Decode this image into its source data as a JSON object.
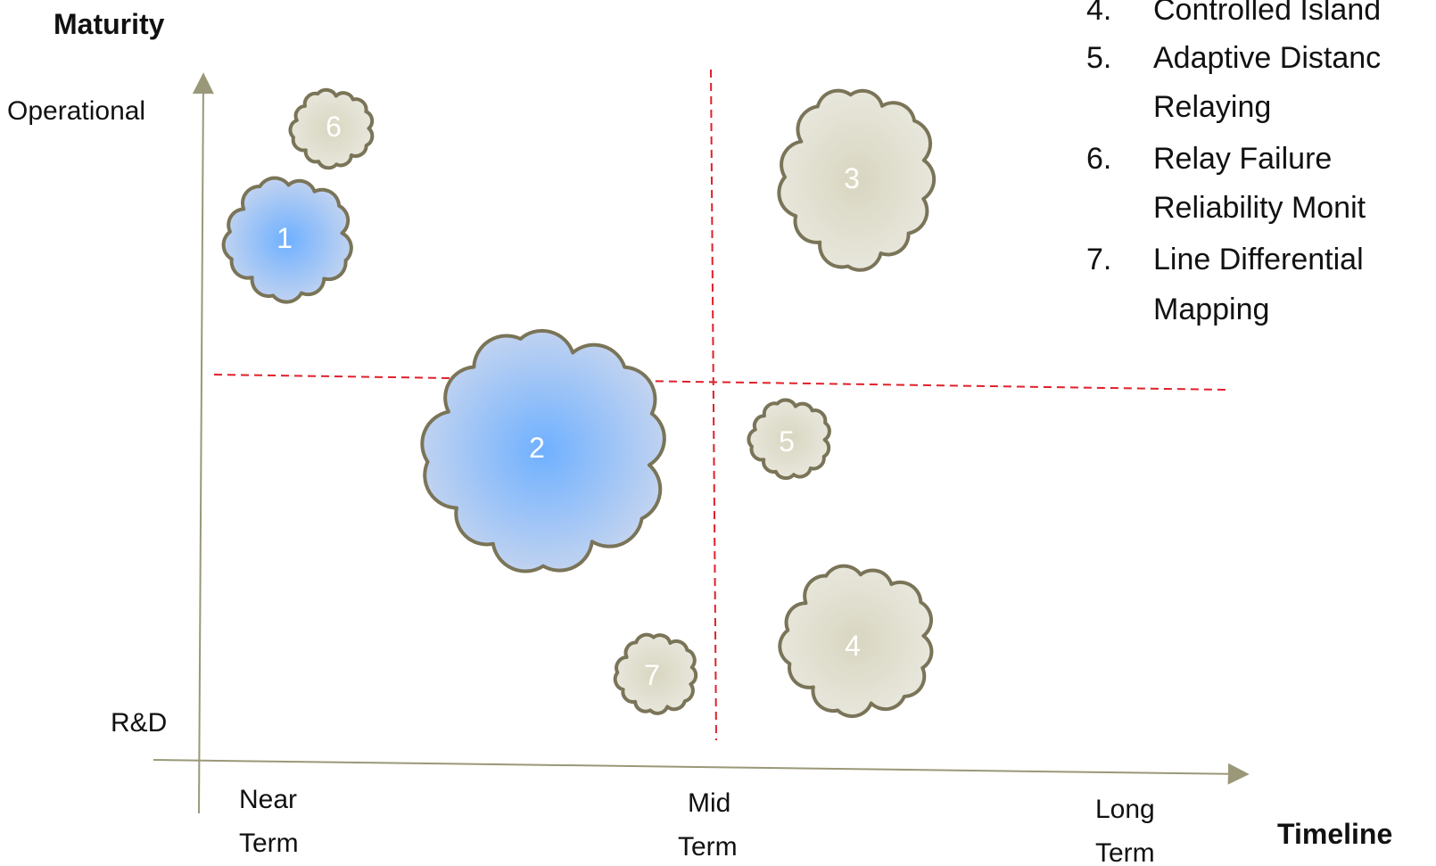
{
  "axes": {
    "y_title": "Maturity",
    "y_top_label": "Operational",
    "y_bottom_label": "R&D",
    "x_title": "Timeline",
    "x_ticks": [
      {
        "line1": "Near",
        "line2": "Term"
      },
      {
        "line1": "Mid",
        "line2": "Term"
      },
      {
        "line1": "Long",
        "line2": "Term"
      }
    ]
  },
  "legend": [
    {
      "num": "4.",
      "text": "Controlled Island"
    },
    {
      "num": "5.",
      "text": "Adaptive Distanc"
    },
    {
      "num": "",
      "text": "Relaying"
    },
    {
      "num": "6.",
      "text": "Relay Failure"
    },
    {
      "num": "",
      "text": "Reliability Monit"
    },
    {
      "num": "7.",
      "text": "Line Differential"
    },
    {
      "num": "",
      "text": "Mapping"
    }
  ],
  "clouds": [
    {
      "label": "1",
      "kind": "blue"
    },
    {
      "label": "2",
      "kind": "blue"
    },
    {
      "label": "3",
      "kind": "tan"
    },
    {
      "label": "4",
      "kind": "tan"
    },
    {
      "label": "5",
      "kind": "tan"
    },
    {
      "label": "6",
      "kind": "tan"
    },
    {
      "label": "7",
      "kind": "tan"
    }
  ],
  "colors": {
    "axis": "#9a9878",
    "divider": "#e0202a",
    "cloud_outline": "#7a7458",
    "blue_center": "#6fb0ff",
    "blue_edge": "#c8d6ef",
    "tan_center": "#d8d6c0",
    "tan_edge": "#e8e7dc"
  }
}
